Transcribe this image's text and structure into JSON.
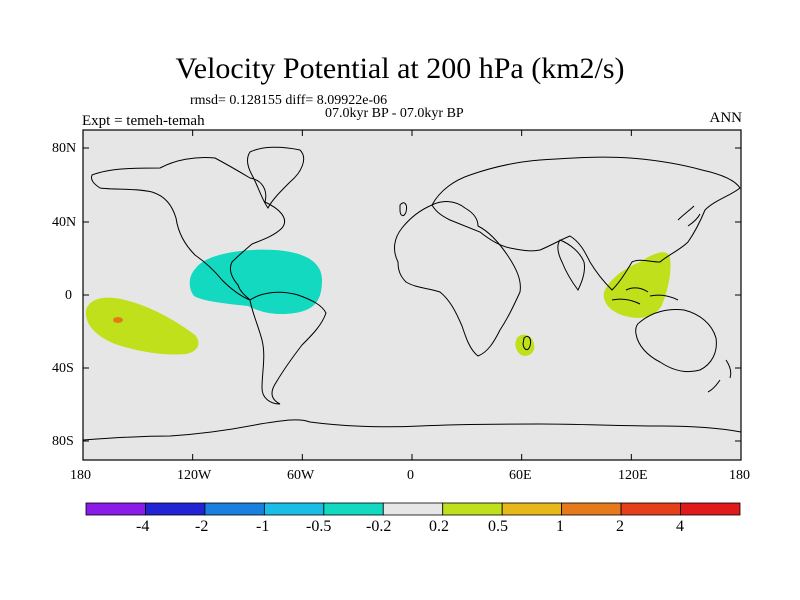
{
  "title": "Velocity Potential at 200 hPa (km2/s)",
  "stats_line": "rmsd= 0.128155 diff= 8.09922e-06",
  "period_line": "07.0kyr BP - 07.0kyr BP",
  "expt_label": "Expt = temeh-temah",
  "season_label": "ANN",
  "y_ticks": [
    "80N",
    "40N",
    "0",
    "40S",
    "80S"
  ],
  "x_ticks": [
    "180",
    "120W",
    "60W",
    "0",
    "60E",
    "120E",
    "180"
  ],
  "colorbar": {
    "colors": [
      "#8a1be8",
      "#2323d6",
      "#1a80e0",
      "#19bde6",
      "#12d9bf",
      "#e6e6e6",
      "#bfe01a",
      "#e6b81a",
      "#e67a1a",
      "#e6401a",
      "#e01a1a"
    ],
    "labels": [
      "-4",
      "-2",
      "-1",
      "-0.5",
      "-0.2",
      "0.2",
      "0.5",
      "1",
      "2",
      "4"
    ]
  },
  "map": {
    "background": "#e6e6e6",
    "neg_fill": "#12d9bf",
    "pos_fill": "#bfe01a",
    "hot_fill": "#e67a1a"
  }
}
